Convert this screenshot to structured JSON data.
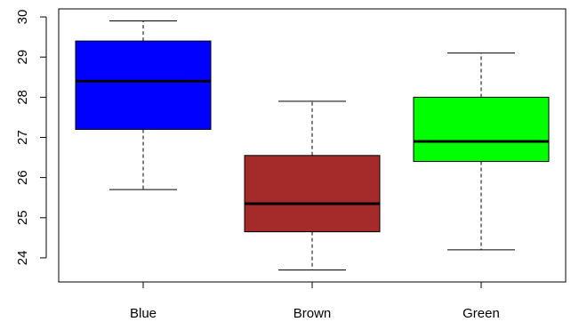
{
  "chart_data": {
    "type": "boxplot",
    "title": "",
    "xlabel": "",
    "ylabel": "",
    "ylim": [
      23.4,
      30.2
    ],
    "yticks": [
      24,
      25,
      26,
      27,
      28,
      29,
      30
    ],
    "grid": false,
    "categories": [
      "Blue",
      "Brown",
      "Green"
    ],
    "boxes": [
      {
        "label": "Blue",
        "color": "#0000ff",
        "min": 25.7,
        "q1": 27.2,
        "median": 28.4,
        "q3": 29.4,
        "max": 29.9
      },
      {
        "label": "Brown",
        "color": "#a52a2a",
        "min": 23.7,
        "q1": 24.65,
        "median": 25.35,
        "q3": 26.55,
        "max": 27.9
      },
      {
        "label": "Green",
        "color": "#00ff00",
        "min": 24.2,
        "q1": 26.4,
        "median": 26.9,
        "q3": 28.0,
        "max": 29.1
      }
    ]
  }
}
